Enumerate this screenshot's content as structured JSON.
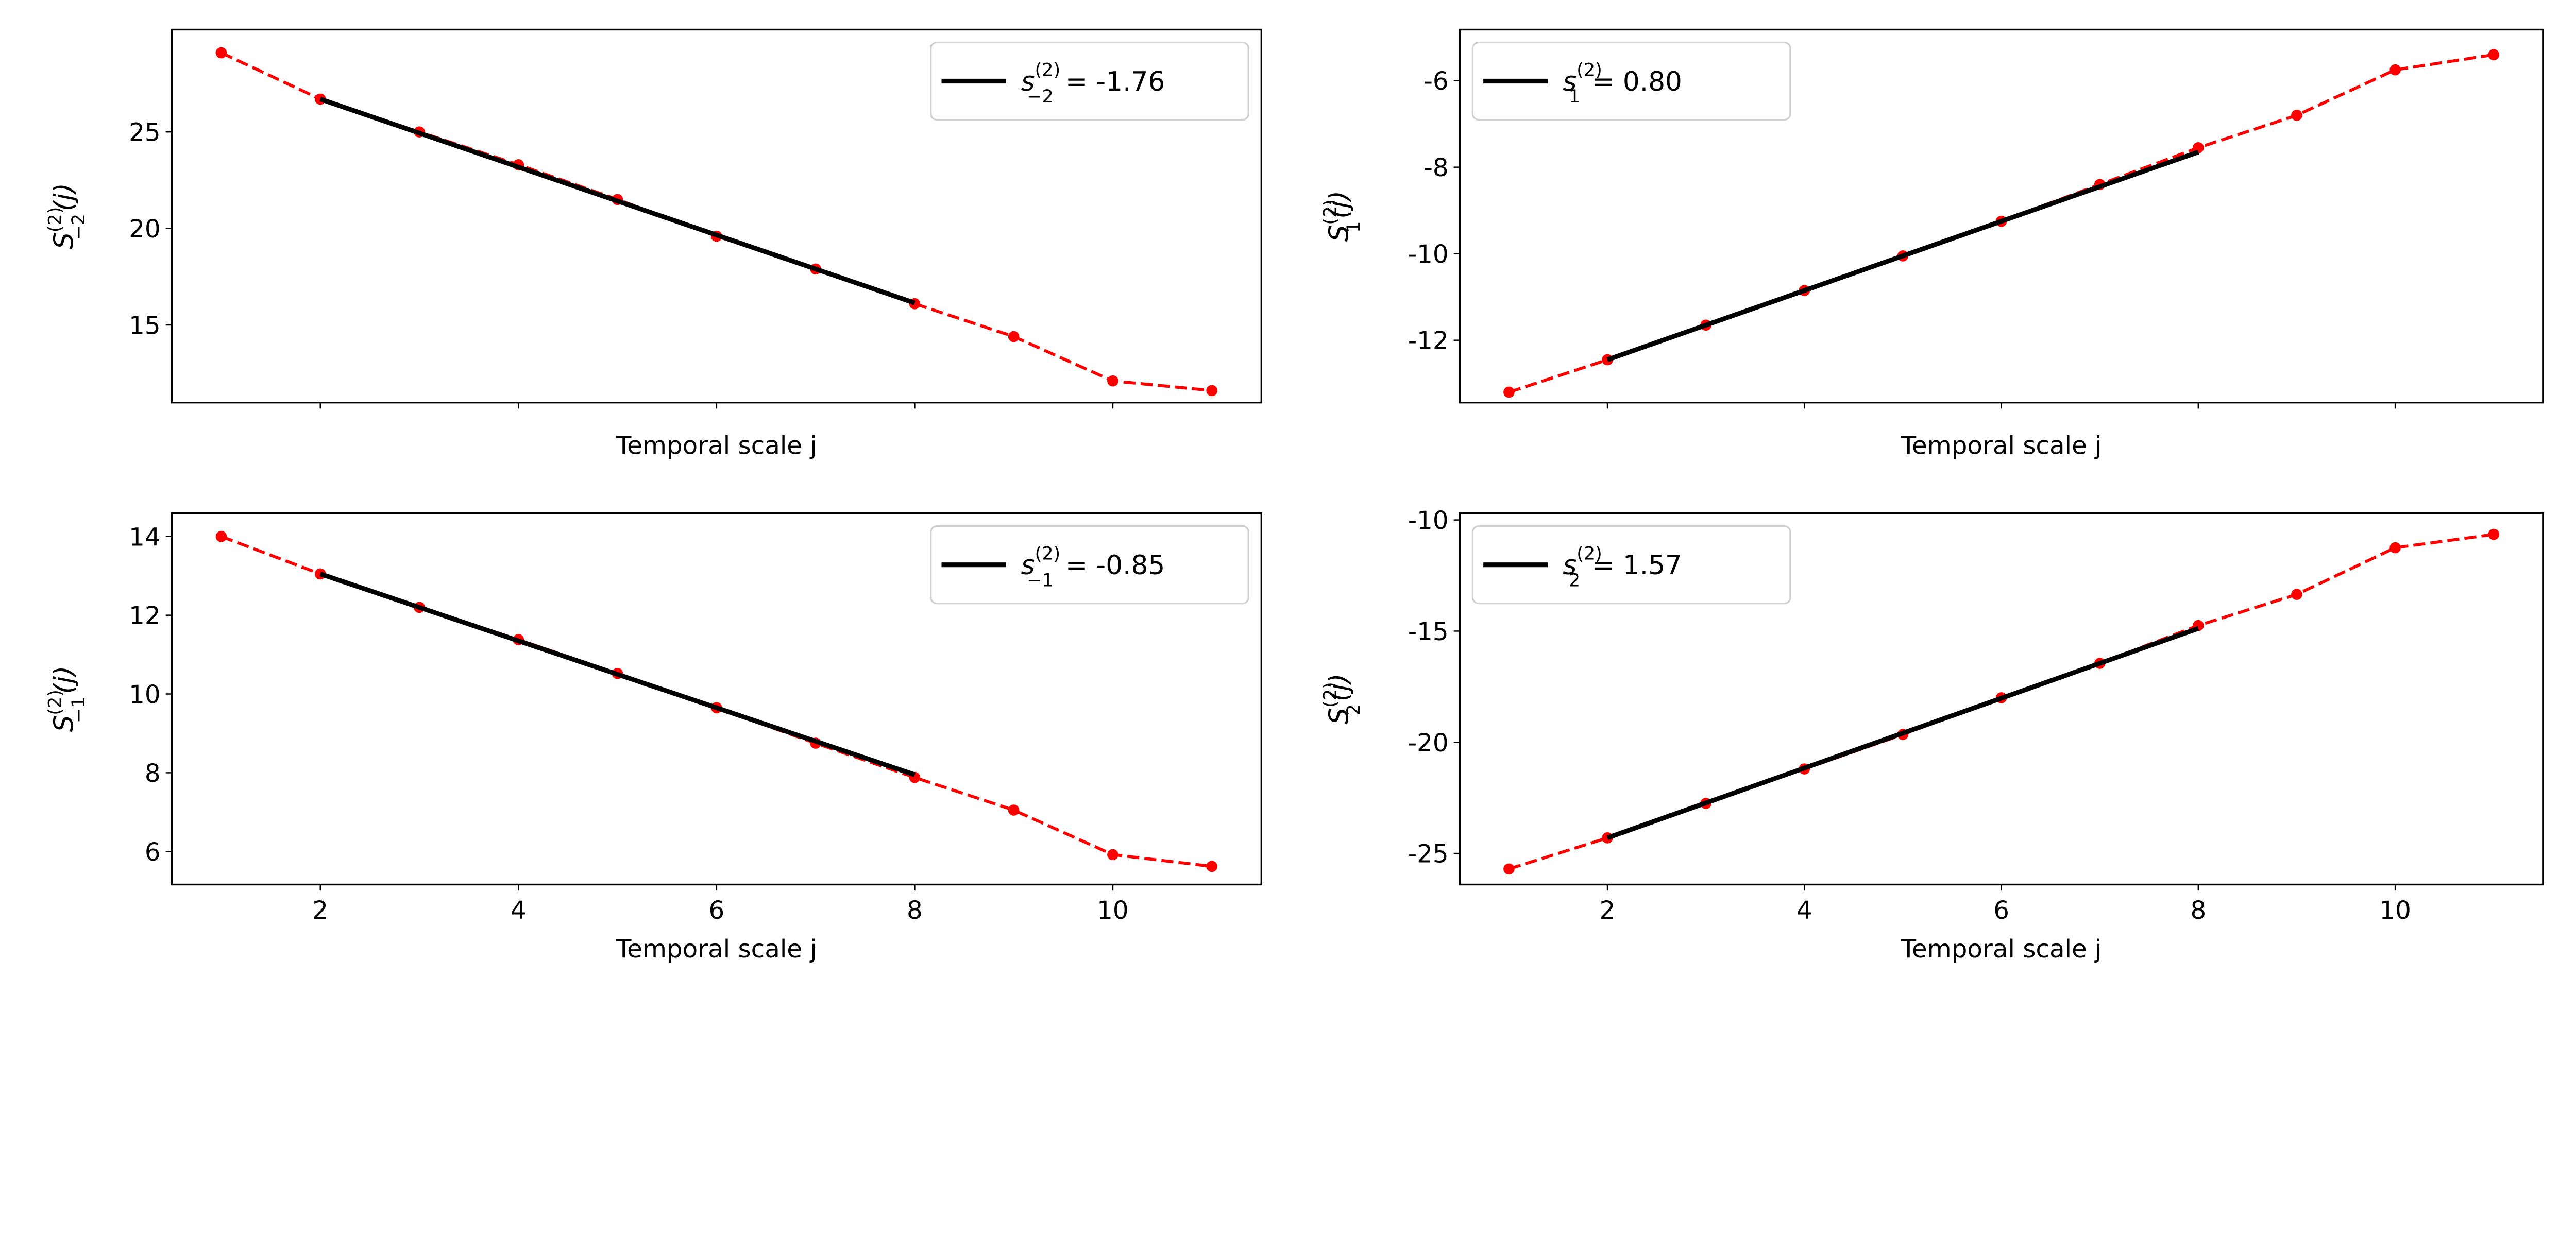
{
  "chart_data": [
    {
      "type": "line",
      "xlabel": "Temporal scale j",
      "ylabel": {
        "symbol": "S",
        "sub": "−2",
        "sup": "(2)",
        "arg": "(j)"
      },
      "x": [
        1,
        2,
        3,
        4,
        5,
        6,
        7,
        8,
        9,
        10,
        11
      ],
      "xlim": [
        0.5,
        11.5
      ],
      "ylim": [
        10.98,
        30.3
      ],
      "xticks": [
        2,
        4,
        6,
        8,
        10
      ],
      "show_xtick_labels": false,
      "yticks": [
        15,
        20,
        25
      ],
      "series": [
        {
          "style": "red dashed with dot markers",
          "color": "#ff0000",
          "values": [
            29.1,
            26.7,
            25.0,
            23.3,
            21.5,
            19.6,
            17.9,
            16.1,
            14.4,
            12.1,
            11.6
          ]
        },
        {
          "style": "black solid fit",
          "color": "#000000",
          "name": {
            "symbol": "s",
            "sub": "−2",
            "sup": "(2)",
            "rest": " = -1.76"
          },
          "x": [
            2,
            8
          ],
          "values": [
            26.7,
            16.14
          ]
        }
      ],
      "legend": "upper-right",
      "grid": false
    },
    {
      "type": "line",
      "xlabel": "Temporal scale j",
      "ylabel": {
        "symbol": "S",
        "sub": "1",
        "sup": "(2)",
        "arg": "(j)"
      },
      "x": [
        1,
        2,
        3,
        4,
        5,
        6,
        7,
        8,
        9,
        10,
        11
      ],
      "xlim": [
        0.5,
        11.5
      ],
      "ylim": [
        -13.44,
        -4.82
      ],
      "xticks": [
        2,
        4,
        6,
        8,
        10
      ],
      "show_xtick_labels": false,
      "yticks": [
        -12,
        -10,
        -8,
        -6
      ],
      "series": [
        {
          "style": "red dashed with dot markers",
          "color": "#ff0000",
          "values": [
            -13.2,
            -12.45,
            -11.65,
            -10.85,
            -10.05,
            -9.25,
            -8.4,
            -7.55,
            -6.8,
            -5.75,
            -5.4
          ]
        },
        {
          "style": "black solid fit",
          "color": "#000000",
          "name": {
            "symbol": "s",
            "sub": "1",
            "sup": "(2)",
            "rest": " = 0.80"
          },
          "x": [
            2,
            8
          ],
          "values": [
            -12.45,
            -7.65
          ]
        }
      ],
      "legend": "upper-left",
      "grid": false
    },
    {
      "type": "line",
      "xlabel": "Temporal scale j",
      "ylabel": {
        "symbol": "S",
        "sub": "−1",
        "sup": "(2)",
        "arg": "(j)"
      },
      "x": [
        1,
        2,
        3,
        4,
        5,
        6,
        7,
        8,
        9,
        10,
        11
      ],
      "xlim": [
        0.5,
        11.5
      ],
      "ylim": [
        5.16,
        14.59
      ],
      "xticks": [
        2,
        4,
        6,
        8,
        10
      ],
      "show_xtick_labels": true,
      "yticks": [
        6,
        8,
        10,
        12,
        14
      ],
      "series": [
        {
          "style": "red dashed with dot markers",
          "color": "#ff0000",
          "values": [
            14.0,
            13.05,
            12.2,
            11.38,
            10.52,
            9.65,
            8.75,
            7.88,
            7.05,
            5.92,
            5.62
          ]
        },
        {
          "style": "black solid fit",
          "color": "#000000",
          "name": {
            "symbol": "s",
            "sub": "−1",
            "sup": "(2)",
            "rest": " = -0.85"
          },
          "x": [
            2,
            8
          ],
          "values": [
            13.05,
            7.95
          ]
        }
      ],
      "legend": "upper-right",
      "grid": false
    },
    {
      "type": "line",
      "xlabel": "Temporal scale j",
      "ylabel": {
        "symbol": "S",
        "sub": "2",
        "sup": "(2)",
        "arg": "(j)"
      },
      "x": [
        1,
        2,
        3,
        4,
        5,
        6,
        7,
        8,
        9,
        10,
        11
      ],
      "xlim": [
        0.5,
        11.5
      ],
      "ylim": [
        -26.4,
        -9.7
      ],
      "xticks": [
        2,
        4,
        6,
        8,
        10
      ],
      "show_xtick_labels": true,
      "yticks": [
        -25,
        -20,
        -15,
        -10
      ],
      "series": [
        {
          "style": "red dashed with dot markers",
          "color": "#ff0000",
          "values": [
            -25.7,
            -24.3,
            -22.75,
            -21.2,
            -19.65,
            -18.0,
            -16.45,
            -14.75,
            -13.35,
            -11.25,
            -10.65
          ]
        },
        {
          "style": "black solid fit",
          "color": "#000000",
          "name": {
            "symbol": "s",
            "sub": "2",
            "sup": "(2)",
            "rest": " = 1.57"
          },
          "x": [
            2,
            8
          ],
          "values": [
            -24.3,
            -14.88
          ]
        }
      ],
      "legend": "upper-left",
      "grid": false
    }
  ]
}
